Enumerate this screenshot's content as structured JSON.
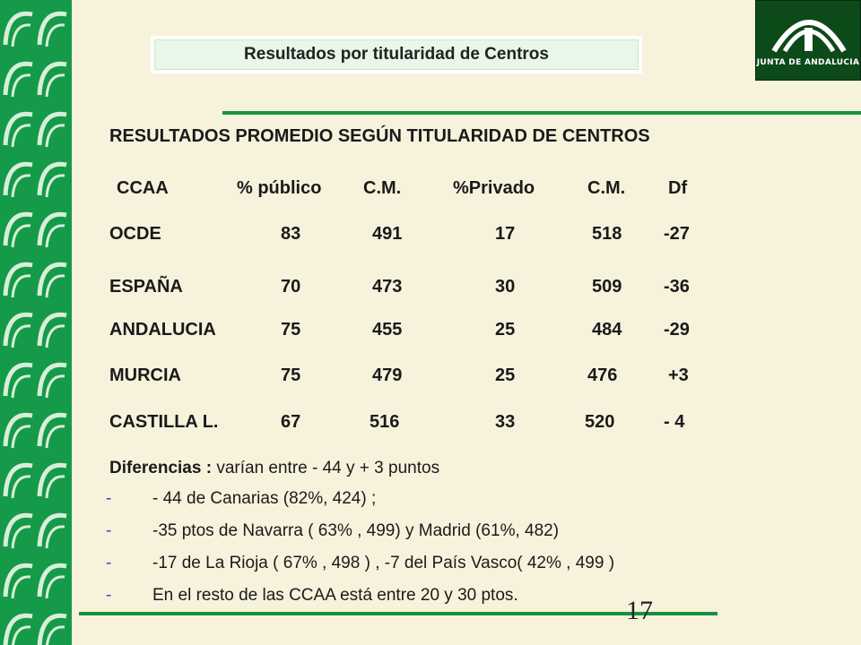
{
  "header": {
    "title": "Resultados por titularidad de Centros"
  },
  "logo": {
    "text": "JUNTA DE ANDALUCIA"
  },
  "heading": "RESULTADOS PROMEDIO SEGÚN TITULARIDAD DE CENTROS",
  "table": {
    "columns": [
      "CCAA",
      "% público",
      "C.M.",
      "%Privado",
      "C.M.",
      "Df"
    ],
    "rows": [
      [
        "OCDE",
        "83",
        "491",
        "17",
        "518",
        "-27"
      ],
      [
        "ESPAÑA",
        "70",
        "473",
        "30",
        "509",
        "-36"
      ],
      [
        "ANDALUCIA",
        "75",
        "455",
        "25",
        "484",
        "-29"
      ],
      [
        "MURCIA",
        "75",
        "479",
        "25",
        "476",
        "+3"
      ],
      [
        "CASTILLA L.",
        "67",
        "516",
        "33",
        "520",
        "- 4"
      ]
    ]
  },
  "differences": {
    "label": "Diferencias :",
    "summary": "varían entre  - 44 y  + 3 puntos",
    "bullet": "-",
    "items": [
      "- 44 de Canarias (82%, 424) ;",
      " -35 ptos  de Navarra ( 63% , 499) y Madrid (61%, 482)",
      " -17 de La Rioja ( 67% , 498  ) , -7 del País Vasco( 42% , 499 )",
      "En el resto de las CCAA está entre 20 y 30 ptos."
    ]
  },
  "page_number": "17",
  "colors": {
    "background": "#f7f2dc",
    "band": "#159a49",
    "rule": "#15923f",
    "logo_bg": "#0c4a1a",
    "bullet": "#2a4fb8"
  }
}
